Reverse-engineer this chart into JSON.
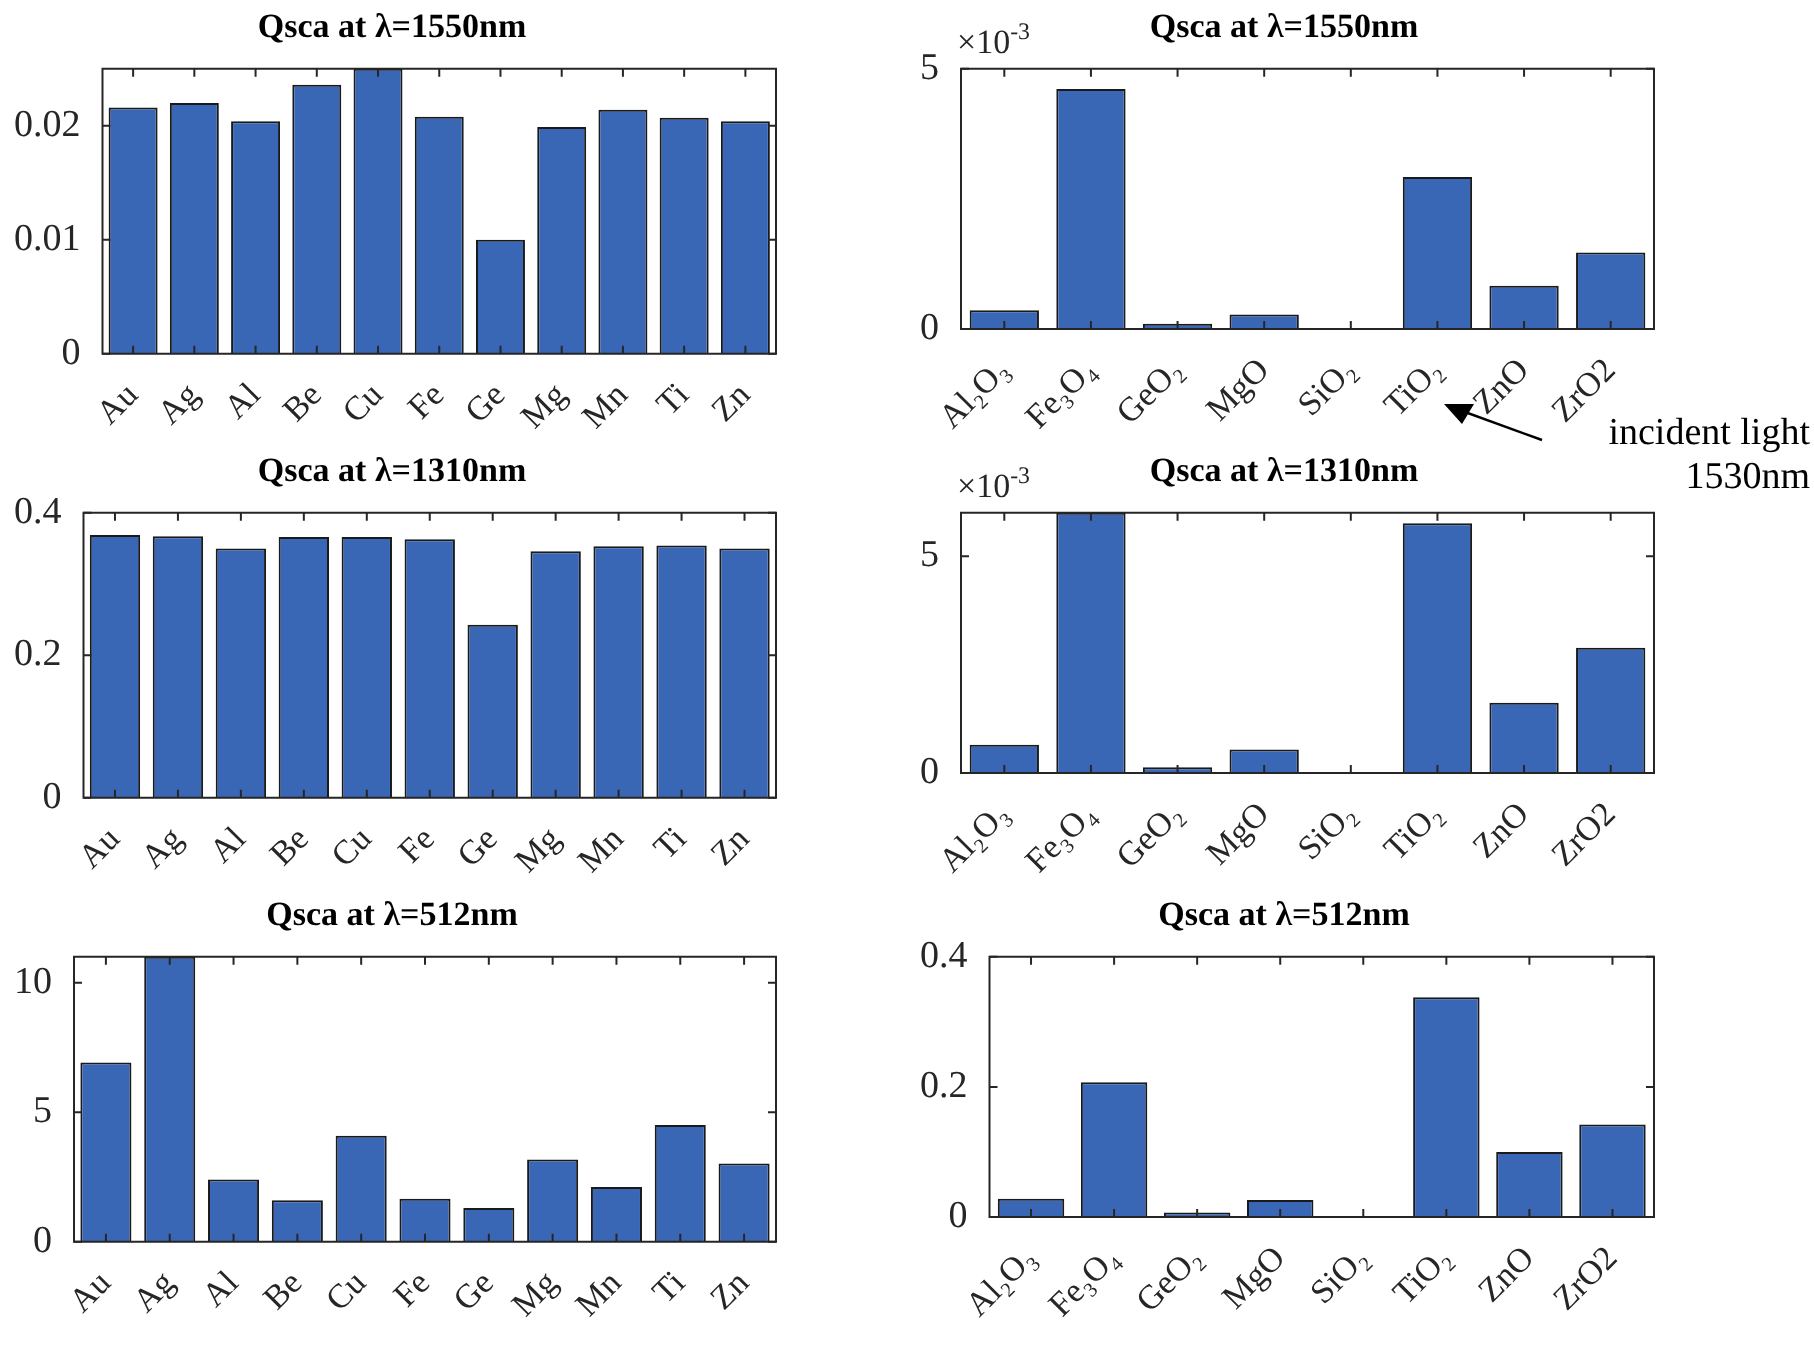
{
  "chart_data": [
    {
      "type": "bar",
      "title": "Qsca at λ=1550nm",
      "categories": [
        "Au",
        "Ag",
        "Al",
        "Be",
        "Cu",
        "Fe",
        "Ge",
        "Mg",
        "Mn",
        "Ti",
        "Zn"
      ],
      "values": [
        0.0216,
        0.022,
        0.0204,
        0.0236,
        0.025,
        0.0208,
        0.01,
        0.0199,
        0.0214,
        0.0207,
        0.0204
      ],
      "color": "#3a67b5",
      "ylim": [
        0,
        0.025
      ],
      "yticks": [
        0,
        0.01,
        0.02
      ]
    },
    {
      "type": "bar",
      "title": "Qsca at λ=1550nm",
      "categories": [
        "Al₂O₃",
        "Fe₃O₄",
        "GeO₂",
        "MgO",
        "SiO₂",
        "TiO₂",
        "ZnO",
        "ZrO2"
      ],
      "values": [
        0.36,
        4.61,
        0.1,
        0.28,
        0,
        2.92,
        0.83,
        1.47
      ],
      "color": "#3a67b5",
      "ylim": [
        0,
        5
      ],
      "yticks": [
        0,
        5
      ],
      "annotations": [
        "×10$^{-3}$",
        "incident light\n1530nm"
      ]
    },
    {
      "type": "bar",
      "title": "Qsca at λ=1310nm",
      "categories": [
        "Au",
        "Ag",
        "Al",
        "Be",
        "Cu",
        "Fe",
        "Ge",
        "Mg",
        "Mn",
        "Ti",
        "Zn"
      ],
      "values": [
        0.369,
        0.367,
        0.35,
        0.366,
        0.366,
        0.363,
        0.243,
        0.346,
        0.353,
        0.354,
        0.35
      ],
      "color": "#3a67b5",
      "ylim": [
        0,
        0.4
      ],
      "yticks": [
        0,
        0.2,
        0.4
      ]
    },
    {
      "type": "bar",
      "title": "Qsca at λ=1310nm",
      "categories": [
        "Al₂O₃",
        "Fe₃O₄",
        "GeO₂",
        "MgO",
        "SiO₂",
        "TiO₂",
        "ZnO",
        "ZrO2"
      ],
      "values": [
        0.65,
        6,
        0.13,
        0.54,
        0,
        5.76,
        1.62,
        2.89
      ],
      "color": "#3a67b5",
      "ylim": [
        0,
        6
      ],
      "yticks": [
        0,
        5
      ],
      "annotations": [
        "×10$^{-3}$"
      ]
    },
    {
      "type": "bar",
      "title": "Qsca at λ=512nm",
      "categories": [
        "Au",
        "Ag",
        "Al",
        "Be",
        "Cu",
        "Fe",
        "Ge",
        "Mg",
        "Mn",
        "Ti",
        "Zn"
      ],
      "values": [
        6.92,
        11,
        2.4,
        1.6,
        4.09,
        1.66,
        1.3,
        3.18,
        2.11,
        4.51,
        3.02
      ],
      "color": "#3a67b5",
      "ylim": [
        0,
        11
      ],
      "yticks": [
        0,
        5,
        10
      ]
    },
    {
      "type": "bar",
      "title": "Qsca at λ=512nm",
      "categories": [
        "Al₂O₃",
        "Fe₃O₄",
        "GeO₂",
        "MgO",
        "SiO₂",
        "TiO₂",
        "ZnO",
        "ZrO2"
      ],
      "values": [
        0.028,
        0.207,
        0.007,
        0.026,
        0,
        0.338,
        0.1,
        0.142
      ],
      "color": "#3a67b5",
      "ylim": [
        0,
        0.4
      ],
      "yticks": [
        0,
        0.2,
        0.4
      ]
    }
  ]
}
